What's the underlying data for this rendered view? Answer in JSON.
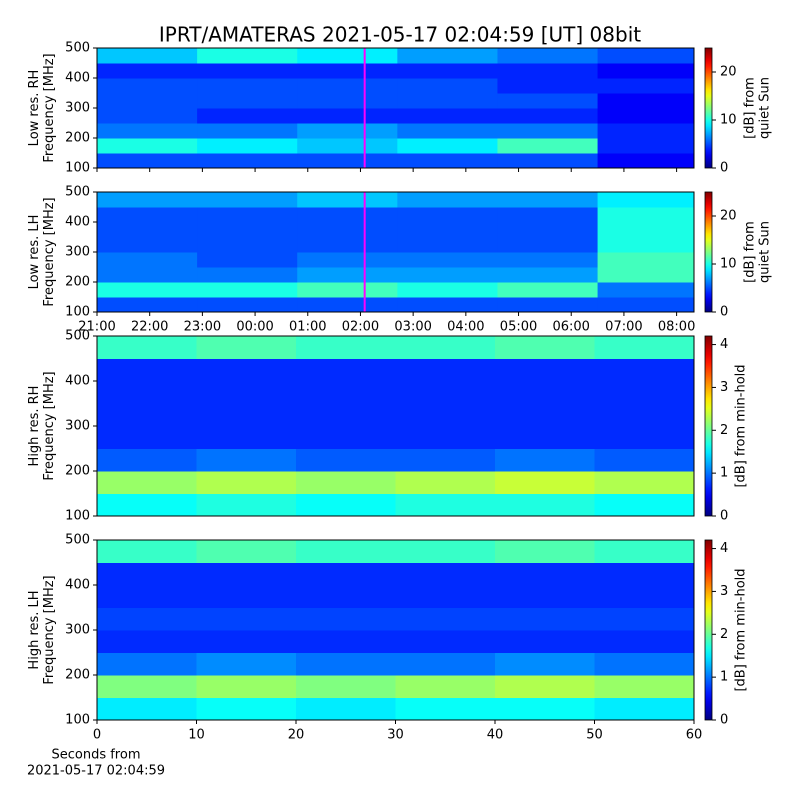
{
  "title": "IPRT/AMATERAS 2021-05-17 02:04:59 [UT]   08bit",
  "chart_data": [
    {
      "type": "heatmap",
      "ylabel": [
        "Low res. RH",
        "Frequency [MHz]"
      ],
      "xlim": [
        0,
        11.33
      ],
      "ylim": [
        100,
        500
      ],
      "yticks": [
        100,
        200,
        300,
        400,
        500
      ],
      "xticks": [
        {
          "value": 0,
          "label": "21:00"
        },
        {
          "value": 1,
          "label": "22:00"
        },
        {
          "value": 2,
          "label": "23:00"
        },
        {
          "value": 3,
          "label": "00:00"
        },
        {
          "value": 4,
          "label": "01:00"
        },
        {
          "value": 5,
          "label": "02:00"
        },
        {
          "value": 6,
          "label": "03:00"
        },
        {
          "value": 7,
          "label": "04:00"
        },
        {
          "value": 8,
          "label": "05:00"
        },
        {
          "value": 9,
          "label": "06:00"
        },
        {
          "value": 10,
          "label": "07:00"
        },
        {
          "value": 11,
          "label": "08:00"
        }
      ],
      "show_xticklabels": false,
      "xbins": [
        0,
        1.9,
        3.8,
        5.7,
        7.6,
        9.5,
        11.33
      ],
      "ybins": [
        100,
        150,
        200,
        250,
        300,
        350,
        400,
        450,
        500
      ],
      "z": [
        [
          5,
          5,
          5,
          5,
          5,
          3
        ],
        [
          10,
          9,
          8,
          9,
          11,
          4
        ],
        [
          6,
          6,
          7,
          6,
          6,
          4
        ],
        [
          5,
          4,
          4,
          4,
          4,
          3
        ],
        [
          5,
          5,
          5,
          5,
          5,
          3
        ],
        [
          5,
          5,
          5,
          5,
          4,
          4
        ],
        [
          4,
          4,
          4,
          4,
          4,
          3
        ],
        [
          8,
          10,
          9,
          7,
          6,
          5
        ]
      ],
      "clim": [
        0,
        25
      ],
      "cticks": [
        0,
        10,
        20
      ],
      "cbar_label": [
        "[dB] from",
        "quiet Sun"
      ],
      "marker_x": 5.08,
      "marker_color": "#ff00ff"
    },
    {
      "type": "heatmap",
      "ylabel": [
        "Low res. LH",
        "Frequency [MHz]"
      ],
      "xlim": [
        0,
        11.33
      ],
      "ylim": [
        100,
        500
      ],
      "yticks": [
        100,
        200,
        300,
        400,
        500
      ],
      "xticks": [
        {
          "value": 0,
          "label": "21:00"
        },
        {
          "value": 1,
          "label": "22:00"
        },
        {
          "value": 2,
          "label": "23:00"
        },
        {
          "value": 3,
          "label": "00:00"
        },
        {
          "value": 4,
          "label": "01:00"
        },
        {
          "value": 5,
          "label": "02:00"
        },
        {
          "value": 6,
          "label": "03:00"
        },
        {
          "value": 7,
          "label": "04:00"
        },
        {
          "value": 8,
          "label": "05:00"
        },
        {
          "value": 9,
          "label": "06:00"
        },
        {
          "value": 10,
          "label": "07:00"
        },
        {
          "value": 11,
          "label": "08:00"
        }
      ],
      "show_xticklabels": true,
      "xbins": [
        0,
        1.9,
        3.8,
        5.7,
        7.6,
        9.5,
        11.33
      ],
      "ybins": [
        100,
        150,
        200,
        250,
        300,
        350,
        400,
        450,
        500
      ],
      "z": [
        [
          5,
          5,
          5,
          5,
          5,
          5
        ],
        [
          10,
          10,
          11,
          10,
          11,
          6
        ],
        [
          6,
          6,
          7,
          7,
          7,
          11
        ],
        [
          6,
          5,
          6,
          6,
          6,
          11
        ],
        [
          5,
          5,
          5,
          5,
          5,
          10
        ],
        [
          5,
          5,
          5,
          5,
          5,
          10
        ],
        [
          5,
          5,
          5,
          5,
          5,
          10
        ],
        [
          7,
          7,
          8,
          7,
          7,
          9
        ]
      ],
      "clim": [
        0,
        25
      ],
      "cticks": [
        0,
        10,
        20
      ],
      "cbar_label": [
        "[dB] from",
        "quiet Sun"
      ],
      "marker_x": 5.08,
      "marker_color": "#ff00ff"
    },
    {
      "type": "heatmap",
      "ylabel": [
        "High res. RH",
        "Frequency [MHz]"
      ],
      "xlim": [
        0,
        60
      ],
      "ylim": [
        100,
        500
      ],
      "yticks": [
        100,
        200,
        300,
        400,
        500
      ],
      "xbins": [
        0,
        10,
        20,
        30,
        40,
        50,
        60
      ],
      "ybins": [
        100,
        150,
        200,
        250,
        300,
        350,
        400,
        450,
        500
      ],
      "z": [
        [
          1.6,
          1.7,
          1.6,
          1.7,
          1.7,
          1.6
        ],
        [
          2.2,
          2.3,
          2.2,
          2.3,
          2.4,
          2.3
        ],
        [
          0.9,
          1.0,
          0.9,
          0.9,
          1.0,
          0.9
        ],
        [
          0.7,
          0.7,
          0.7,
          0.7,
          0.7,
          0.7
        ],
        [
          0.7,
          0.7,
          0.7,
          0.7,
          0.7,
          0.7
        ],
        [
          0.7,
          0.7,
          0.7,
          0.7,
          0.7,
          0.7
        ],
        [
          0.7,
          0.7,
          0.7,
          0.7,
          0.7,
          0.7
        ],
        [
          1.8,
          1.9,
          1.8,
          1.8,
          1.9,
          1.8
        ]
      ],
      "clim": [
        0,
        4.2
      ],
      "cticks": [
        0,
        1,
        2,
        3,
        4
      ],
      "cbar_label": [
        "[dB] from min-hold"
      ]
    },
    {
      "type": "heatmap",
      "ylabel": [
        "High res. LH",
        "Frequency [MHz]"
      ],
      "xlabel": [
        "Seconds from",
        "2021-05-17 02:04:59"
      ],
      "xlim": [
        0,
        60
      ],
      "ylim": [
        100,
        500
      ],
      "yticks": [
        100,
        200,
        300,
        400,
        500
      ],
      "xticks": [
        0,
        10,
        20,
        30,
        40,
        50,
        60
      ],
      "show_xticklabels": true,
      "xbins": [
        0,
        10,
        20,
        30,
        40,
        50,
        60
      ],
      "ybins": [
        100,
        150,
        200,
        250,
        300,
        350,
        400,
        450,
        500
      ],
      "z": [
        [
          1.5,
          1.6,
          1.5,
          1.6,
          1.6,
          1.5
        ],
        [
          2.1,
          2.2,
          2.1,
          2.2,
          2.3,
          2.2
        ],
        [
          1.0,
          1.1,
          1.0,
          1.0,
          1.1,
          1.0
        ],
        [
          0.7,
          0.7,
          0.7,
          0.7,
          0.7,
          0.7
        ],
        [
          0.8,
          0.8,
          0.8,
          0.8,
          0.8,
          0.8
        ],
        [
          0.7,
          0.7,
          0.7,
          0.7,
          0.7,
          0.7
        ],
        [
          0.7,
          0.7,
          0.7,
          0.7,
          0.7,
          0.7
        ],
        [
          1.8,
          1.9,
          1.8,
          1.8,
          1.9,
          1.8
        ]
      ],
      "clim": [
        0,
        4.2
      ],
      "cticks": [
        0,
        1,
        2,
        3,
        4
      ],
      "cbar_label": [
        "[dB] from min-hold"
      ]
    }
  ]
}
